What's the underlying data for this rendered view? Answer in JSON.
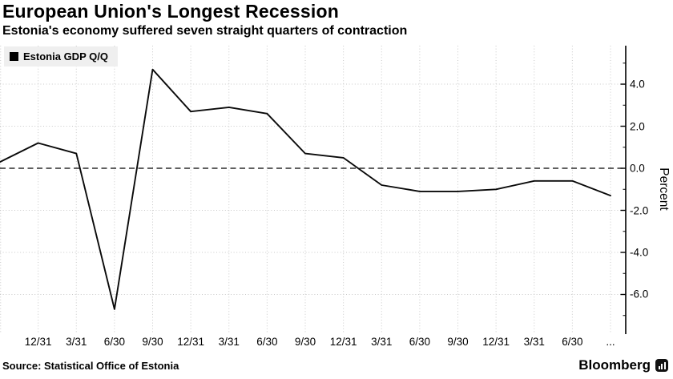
{
  "header": {
    "title": "European Union's Longest Recession",
    "subtitle": "Estonia's economy suffered seven straight quarters of contraction"
  },
  "legend": {
    "marker_icon": "black-square-icon",
    "label": "Estonia GDP Q/Q"
  },
  "footer": {
    "source": "Source: Statistical Office of Estonia",
    "brand": "Bloomberg",
    "brand_icon": "bar-chart-icon"
  },
  "colors": {
    "background": "#ffffff",
    "text": "#000000",
    "line": "#0a0a0a",
    "grid": "#c9c9c9",
    "zero_line": "#000000",
    "axis": "#000000",
    "legend_bg": "#efefef"
  },
  "chart_data": {
    "type": "line",
    "title": "European Union's Longest Recession",
    "subtitle": "Estonia's economy suffered seven straight quarters of contraction",
    "ylabel": "Percent",
    "xlabel": "",
    "x_tick_labels": [
      "",
      "12/31",
      "3/31",
      "6/30",
      "9/30",
      "12/31",
      "3/31",
      "6/30",
      "9/30",
      "12/31",
      "3/31",
      "6/30",
      "9/30",
      "12/31",
      "3/31",
      "6/30",
      "..."
    ],
    "series": [
      {
        "name": "Estonia GDP Q/Q",
        "color": "#0a0a0a",
        "values": [
          0.3,
          1.2,
          0.7,
          -6.7,
          4.7,
          2.7,
          2.9,
          2.6,
          0.7,
          0.5,
          -0.8,
          -1.1,
          -1.1,
          -1.0,
          -0.6,
          -0.6,
          -1.3
        ]
      }
    ],
    "y_major_ticks": [
      4.0,
      2.0,
      0.0,
      -2.0,
      -4.0,
      -6.0
    ],
    "y_tick_labels": [
      "4.0",
      "2.0",
      "0.0",
      "-2.0",
      "-4.0",
      "-6.0"
    ],
    "y_minor_ticks": [
      5.0,
      3.0,
      1.0,
      -1.0,
      -3.0,
      -5.0,
      -7.0
    ],
    "ylim": [
      -7.81,
      5.83
    ],
    "zero_line_dashed": true,
    "grid": true,
    "grid_style": "dotted",
    "y_axis_side": "right",
    "legend_position": "top-left"
  }
}
